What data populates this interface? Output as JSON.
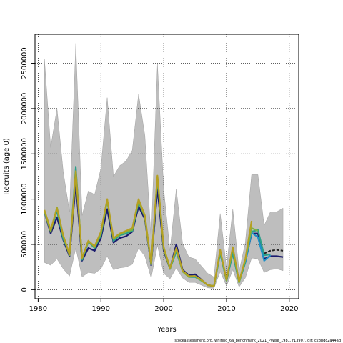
{
  "chart_data": {
    "type": "line",
    "title": "",
    "xlabel": "Years",
    "ylabel": "Recruits (age 0)",
    "xlim": [
      1979.5,
      2021.5
    ],
    "ylim": [
      -100000,
      2820000
    ],
    "x_ticks": [
      1980,
      1990,
      2000,
      2010,
      2020
    ],
    "x_tick_labels": [
      "1980",
      "1990",
      "2000",
      "2010",
      "2020"
    ],
    "y_ticks": [
      0,
      500000,
      1000000,
      1500000,
      2000000,
      2500000
    ],
    "y_tick_labels": [
      "0",
      "500000",
      "1000000",
      "1500000",
      "2000000",
      "2500000"
    ],
    "grid": "dotted",
    "footer": "stockassessment.org, whiting_6a_benchmark_2021_PWise_1981, r13907, git: c28bdc2a44ad",
    "band": {
      "x": [
        1981,
        1982,
        1983,
        1984,
        1985,
        1986,
        1987,
        1988,
        1989,
        1990,
        1991,
        1992,
        1993,
        1994,
        1995,
        1996,
        1997,
        1998,
        1999,
        2000,
        2001,
        2002,
        2003,
        2004,
        2005,
        2006,
        2007,
        2008,
        2009,
        2010,
        2011,
        2012,
        2013,
        2014,
        2015,
        2016,
        2017,
        2018,
        2019
      ],
      "upper": [
        2550000,
        1570000,
        2000000,
        1300000,
        860000,
        2720000,
        820000,
        1090000,
        1050000,
        1340000,
        2120000,
        1250000,
        1370000,
        1420000,
        1540000,
        2160000,
        1700000,
        560000,
        2490000,
        1110000,
        430000,
        1110000,
        510000,
        360000,
        340000,
        260000,
        180000,
        140000,
        840000,
        240000,
        890000,
        200000,
        520000,
        1270000,
        1270000,
        710000,
        860000,
        860000,
        900000
      ],
      "lower": [
        300000,
        270000,
        340000,
        230000,
        150000,
        460000,
        140000,
        190000,
        180000,
        230000,
        370000,
        220000,
        240000,
        250000,
        280000,
        460000,
        370000,
        130000,
        490000,
        180000,
        120000,
        240000,
        130000,
        80000,
        80000,
        50000,
        20000,
        15000,
        200000,
        40000,
        220000,
        30000,
        130000,
        350000,
        340000,
        190000,
        220000,
        230000,
        210000
      ]
    },
    "series": [
      {
        "color": "#1a1a6e",
        "x": [
          1981,
          1982,
          1983,
          1984,
          1985,
          1986,
          1987,
          1988,
          1989,
          1990,
          1991,
          1992,
          1993,
          1994,
          1995,
          1996,
          1997,
          1998,
          1999,
          2000,
          2001,
          2002,
          2003,
          2004,
          2005,
          2006,
          2007,
          2008,
          2009,
          2010,
          2011,
          2012,
          2013,
          2014,
          2015,
          2016,
          2017,
          2018,
          2019
        ],
        "y": [
          860000,
          620000,
          800000,
          550000,
          370000,
          1180000,
          320000,
          460000,
          430000,
          570000,
          890000,
          520000,
          570000,
          590000,
          640000,
          920000,
          780000,
          270000,
          1120000,
          430000,
          230000,
          500000,
          220000,
          160000,
          170000,
          110000,
          50000,
          40000,
          420000,
          100000,
          410000,
          90000,
          310000,
          620000,
          620000,
          340000,
          370000,
          370000,
          360000
        ]
      },
      {
        "color": "#2ca089",
        "x": [
          1981,
          1982,
          1983,
          1984,
          1985,
          1986,
          1987,
          1988,
          1989,
          1990,
          1991,
          1992,
          1993,
          1994,
          1995,
          1996,
          1997,
          1998,
          1999,
          2000,
          2001,
          2002,
          2003,
          2004,
          2005,
          2006,
          2007,
          2008,
          2009,
          2010,
          2011,
          2012,
          2013,
          2014,
          2015,
          2016,
          2017
        ],
        "y": [
          860000,
          650000,
          870000,
          560000,
          400000,
          1350000,
          330000,
          530000,
          460000,
          600000,
          990000,
          540000,
          600000,
          620000,
          650000,
          970000,
          810000,
          280000,
          1230000,
          460000,
          230000,
          420000,
          210000,
          140000,
          140000,
          100000,
          50000,
          40000,
          400000,
          100000,
          400000,
          80000,
          300000,
          640000,
          660000,
          380000,
          390000
        ]
      },
      {
        "color": "#1e90c8",
        "x": [
          2013,
          2014,
          2015,
          2016,
          2017
        ],
        "y": [
          300000,
          630000,
          580000,
          320000,
          380000
        ]
      },
      {
        "color": "#7cb342",
        "x": [
          1981,
          1982,
          1983,
          1984,
          1985,
          1986,
          1987,
          1988,
          1989,
          1990,
          1991,
          1992,
          1993,
          1994,
          1995,
          1996,
          1997,
          1998,
          1999,
          2000,
          2001,
          2002,
          2003,
          2004,
          2005,
          2006,
          2007,
          2008,
          2009,
          2010,
          2011,
          2012,
          2013,
          2014,
          2015
        ],
        "y": [
          870000,
          640000,
          910000,
          590000,
          380000,
          1290000,
          350000,
          540000,
          470000,
          620000,
          990000,
          560000,
          610000,
          640000,
          660000,
          990000,
          800000,
          280000,
          1250000,
          450000,
          230000,
          450000,
          200000,
          140000,
          150000,
          100000,
          50000,
          40000,
          430000,
          100000,
          460000,
          80000,
          330000,
          680000,
          650000
        ]
      },
      {
        "color": "#b5a022",
        "x": [
          1981,
          1982,
          1983,
          1984,
          1985,
          1986,
          1987,
          1988,
          1989,
          1990,
          1991,
          1992,
          1993,
          1994,
          1995,
          1996,
          1997,
          1998,
          1999,
          2000,
          2001,
          2002,
          2003,
          2004,
          2005,
          2006,
          2007,
          2008,
          2009,
          2010,
          2011,
          2012,
          2013,
          2014
        ],
        "y": [
          880000,
          660000,
          900000,
          600000,
          390000,
          1310000,
          350000,
          540000,
          480000,
          640000,
          1000000,
          570000,
          620000,
          650000,
          680000,
          1000000,
          820000,
          290000,
          1260000,
          470000,
          240000,
          460000,
          210000,
          150000,
          150000,
          110000,
          50000,
          40000,
          440000,
          110000,
          470000,
          90000,
          340000,
          760000
        ]
      },
      {
        "color": "#222222",
        "dashed": true,
        "x": [
          2016,
          2017,
          2018,
          2019
        ],
        "y": [
          400000,
          430000,
          440000,
          430000
        ]
      }
    ]
  }
}
